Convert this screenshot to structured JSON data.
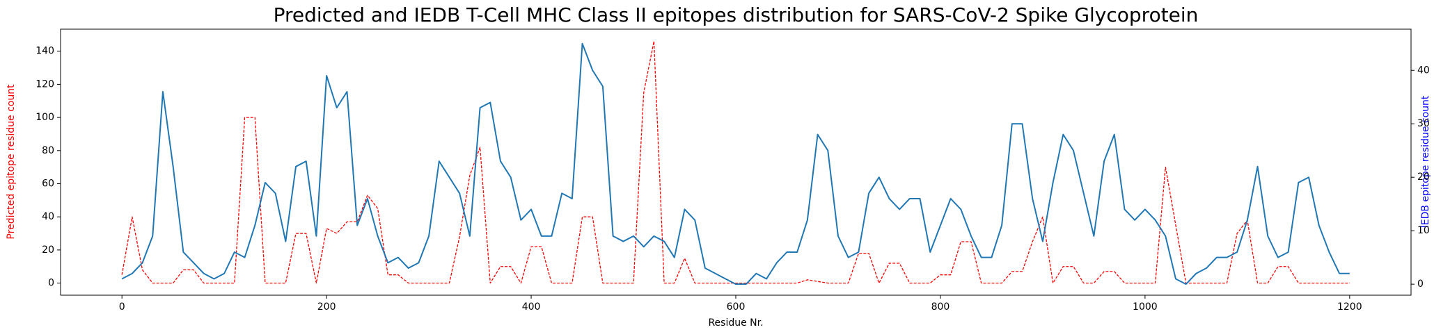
{
  "chart_data": {
    "type": "line",
    "title": "Predicted and IEDB T-Cell MHC Class II epitopes distribution for SARS-CoV-2 Spike Glycoprotein",
    "xlabel": "Residue Nr.",
    "ylabel": "Predicted epitope residue count",
    "y2label": "IEDB epitope residue count",
    "ylabel_color": "#ff0000",
    "y2label_color": "#0000ff",
    "x": [
      0,
      10,
      20,
      30,
      40,
      50,
      60,
      70,
      80,
      90,
      100,
      110,
      120,
      130,
      140,
      150,
      160,
      170,
      180,
      190,
      200,
      210,
      220,
      230,
      240,
      250,
      260,
      270,
      280,
      290,
      300,
      310,
      320,
      330,
      340,
      350,
      360,
      370,
      380,
      390,
      400,
      410,
      420,
      430,
      440,
      450,
      460,
      470,
      480,
      490,
      500,
      510,
      520,
      530,
      540,
      550,
      560,
      570,
      580,
      590,
      600,
      610,
      620,
      630,
      640,
      650,
      660,
      670,
      680,
      690,
      700,
      710,
      720,
      730,
      740,
      750,
      760,
      770,
      780,
      790,
      800,
      810,
      820,
      830,
      840,
      850,
      860,
      870,
      880,
      890,
      900,
      910,
      920,
      930,
      940,
      950,
      960,
      970,
      980,
      990,
      1000,
      1010,
      1020,
      1030,
      1040,
      1050,
      1060,
      1070,
      1080,
      1090,
      1100,
      1110,
      1120,
      1130,
      1140,
      1150,
      1160,
      1170,
      1180,
      1190,
      1200
    ],
    "series": [
      {
        "color": "#ff0000",
        "dashed": true,
        "axis": "y",
        "values": [
          5,
          40,
          8,
          0,
          0,
          0,
          8,
          8,
          0,
          0,
          0,
          0,
          100,
          100,
          0,
          0,
          0,
          30,
          30,
          0,
          33,
          30,
          37,
          37,
          53,
          45,
          5,
          5,
          0,
          0,
          0,
          0,
          0,
          28,
          65,
          82,
          0,
          10,
          10,
          0,
          22,
          22,
          0,
          0,
          0,
          40,
          40,
          0,
          0,
          0,
          0,
          115,
          146,
          0,
          0,
          15,
          0,
          0,
          0,
          0,
          0,
          0,
          0,
          0,
          0,
          0,
          0,
          2,
          1,
          0,
          0,
          0,
          18,
          18,
          0,
          12,
          12,
          0,
          0,
          0,
          5,
          5,
          25,
          25,
          0,
          0,
          0,
          7,
          7,
          25,
          40,
          0,
          10,
          10,
          0,
          0,
          7,
          7,
          0,
          0,
          0,
          0,
          70,
          35,
          0,
          0,
          0,
          0,
          0,
          30,
          38,
          0,
          0,
          10,
          10,
          0,
          0,
          0,
          0,
          0,
          0
        ]
      },
      {
        "color": "#1f77b4",
        "dashed": false,
        "axis": "y2",
        "values": [
          1,
          2,
          4,
          9,
          36,
          22,
          6,
          4,
          2,
          1,
          2,
          6,
          5,
          11,
          19,
          17,
          8,
          22,
          23,
          9,
          39,
          33,
          36,
          11,
          16,
          9,
          4,
          5,
          3,
          4,
          9,
          23,
          20,
          17,
          9,
          33,
          34,
          23,
          20,
          12,
          14,
          9,
          9,
          17,
          16,
          45,
          40,
          37,
          9,
          8,
          9,
          7,
          9,
          8,
          5,
          14,
          12,
          3,
          2,
          1,
          0,
          0,
          2,
          1,
          4,
          6,
          6,
          12,
          28,
          25,
          9,
          5,
          6,
          17,
          20,
          16,
          14,
          16,
          16,
          6,
          11,
          16,
          14,
          9,
          5,
          5,
          11,
          30,
          30,
          16,
          8,
          19,
          28,
          25,
          17,
          9,
          23,
          28,
          14,
          12,
          14,
          12,
          9,
          1,
          0,
          2,
          3,
          5,
          5,
          6,
          12,
          22,
          9,
          5,
          6,
          19,
          20,
          11,
          6,
          2,
          2
        ]
      }
    ],
    "xlim": [
      -60,
      1260
    ],
    "xticks": [
      0,
      200,
      400,
      600,
      800,
      1000,
      1200
    ],
    "ylim": [
      -7.3,
      153.3
    ],
    "yticks": [
      0,
      20,
      40,
      60,
      80,
      100,
      120,
      140
    ],
    "y2lim": [
      -2.06,
      47.7
    ],
    "y2ticks": [
      0,
      10,
      20,
      30,
      40
    ]
  }
}
